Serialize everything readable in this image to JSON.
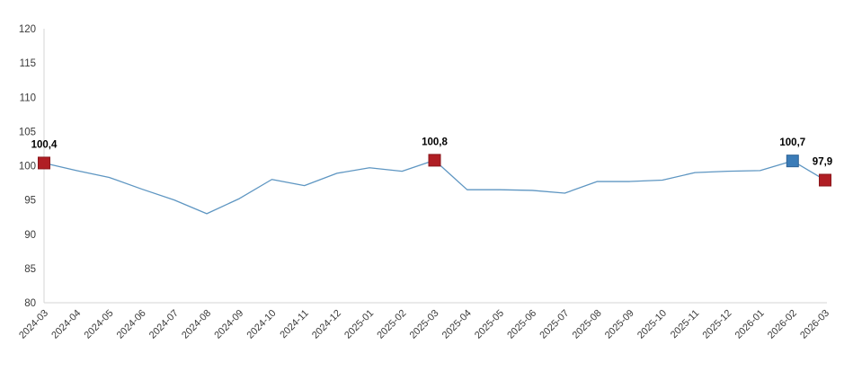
{
  "chart_data": {
    "type": "line",
    "title": "",
    "xlabel": "",
    "ylabel": "",
    "categories": [
      "2024-03",
      "2024-04",
      "2024-05",
      "2024-06",
      "2024-07",
      "2024-08",
      "2024-09",
      "2024-10",
      "2024-11",
      "2024-12",
      "2025-01",
      "2025-02",
      "2025-03",
      "2025-04",
      "2025-05",
      "2025-06",
      "2025-07",
      "2025-08",
      "2025-09",
      "2025-10",
      "2025-11",
      "2025-12",
      "2026-01",
      "2026-02",
      "2026-03"
    ],
    "values": [
      100.4,
      99.3,
      98.3,
      96.6,
      95.0,
      93.0,
      95.2,
      98.0,
      97.1,
      98.9,
      99.7,
      99.2,
      100.8,
      96.5,
      96.5,
      96.4,
      96.0,
      97.7,
      97.7,
      97.9,
      99.0,
      99.2,
      99.3,
      100.7,
      97.9
    ],
    "ylim": [
      80,
      120
    ],
    "ytick_step": 5,
    "ytick_labels": [
      "80",
      "85",
      "90",
      "95",
      "100",
      "105",
      "110",
      "115",
      "120"
    ],
    "grid": false,
    "legend_position": "none",
    "line_color": "#5e96c2",
    "axis_color": "#d6d6d6",
    "tick_text_color": "#3a3a3a",
    "data_label_color": "#000000",
    "annotations": [
      {
        "index": 0,
        "label": "100,4",
        "marker_color": "#b01e24",
        "marker_border": "#8a161b"
      },
      {
        "index": 12,
        "label": "100,8",
        "marker_color": "#b01e24",
        "marker_border": "#8a161b"
      },
      {
        "index": 23,
        "label": "100,7",
        "marker_color": "#3b7cb8",
        "marker_border": "#2f6396"
      },
      {
        "index": 24,
        "label": "97,9",
        "marker_color": "#b01e24",
        "marker_border": "#8a161b"
      }
    ]
  }
}
